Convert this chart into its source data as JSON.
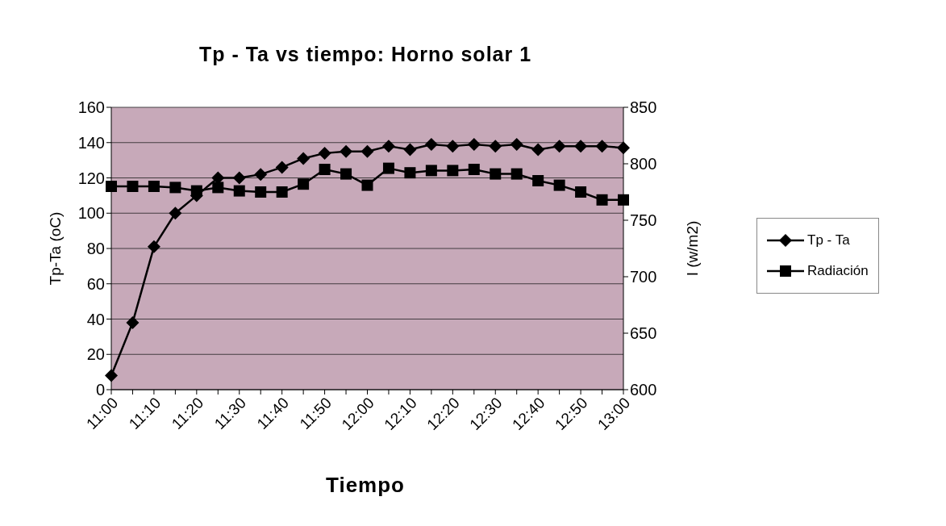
{
  "chart_data": {
    "type": "line",
    "title": "Tp - Ta vs tiempo: Horno solar 1",
    "xlabel": "Tiempo",
    "ylabel": "Tp-Ta (oC)",
    "y2label": "I (w/m2)",
    "categories": [
      "11:00",
      null,
      "11:10",
      null,
      "11:20",
      null,
      "11:30",
      null,
      "11:40",
      null,
      "11:50",
      null,
      "12:00",
      null,
      "12:10",
      null,
      "12:20",
      null,
      "12:30",
      null,
      "12:40",
      null,
      "12:50",
      null,
      "13:00"
    ],
    "series": [
      {
        "name": "Tp - Ta",
        "color": "#000000",
        "marker": "diamond",
        "values": [
          8,
          38,
          81,
          100,
          110,
          120,
          120,
          122,
          126,
          131,
          134,
          135,
          135,
          138,
          136,
          139,
          138,
          139,
          138,
          139,
          136,
          138,
          138,
          138,
          137
        ]
      },
      {
        "name": "Radiación",
        "color": "#000000",
        "marker": "square",
        "axis": "y2",
        "values": [
          780,
          780,
          780,
          779,
          776,
          779,
          776,
          775,
          775,
          782,
          795,
          791,
          781,
          796,
          792,
          794,
          794,
          795,
          791,
          791,
          785,
          781,
          775,
          768,
          768
        ]
      }
    ],
    "ylim": [
      0,
      160
    ],
    "yticks": [
      0,
      20,
      40,
      60,
      80,
      100,
      120,
      140,
      160
    ],
    "y2lim": [
      600,
      850
    ],
    "y2ticks": [
      600,
      650,
      700,
      750,
      800,
      850
    ],
    "grid": "y",
    "legend": "right",
    "line_style": "solid"
  }
}
